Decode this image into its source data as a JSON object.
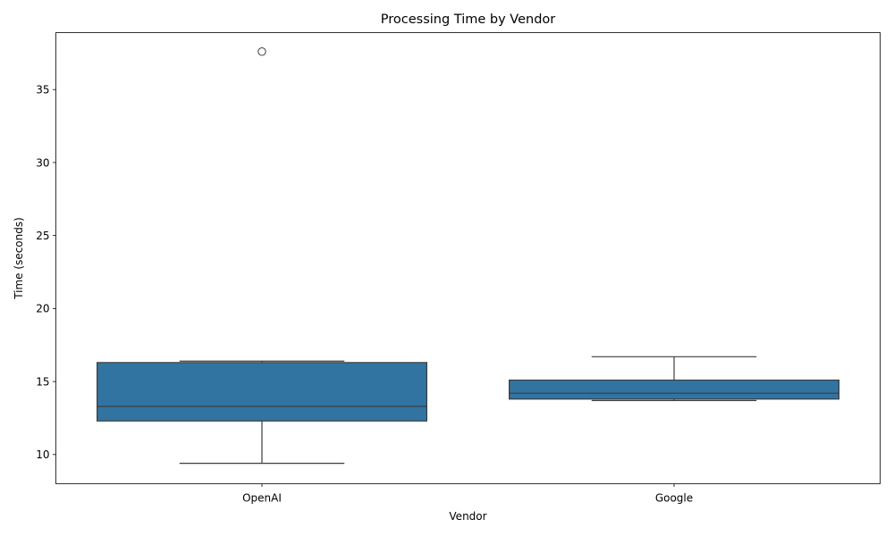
{
  "chart_data": {
    "type": "box",
    "title": "Processing Time by Vendor",
    "xlabel": "Vendor",
    "ylabel": "Time (seconds)",
    "categories": [
      "OpenAI",
      "Google"
    ],
    "ylim": [
      8.0,
      38.9
    ],
    "yticks": [
      10,
      15,
      20,
      25,
      30,
      35
    ],
    "grid": false,
    "box_color": "#3274a1",
    "line_color": "#3d3d3d",
    "boxes": [
      {
        "category": "OpenAI",
        "whisker_low": 9.4,
        "q1": 12.3,
        "median": 13.3,
        "q3": 16.3,
        "whisker_high": 16.4,
        "outliers": [
          37.6
        ]
      },
      {
        "category": "Google",
        "whisker_low": 13.7,
        "q1": 13.8,
        "median": 14.2,
        "q3": 15.1,
        "whisker_high": 16.7,
        "outliers": []
      }
    ]
  }
}
